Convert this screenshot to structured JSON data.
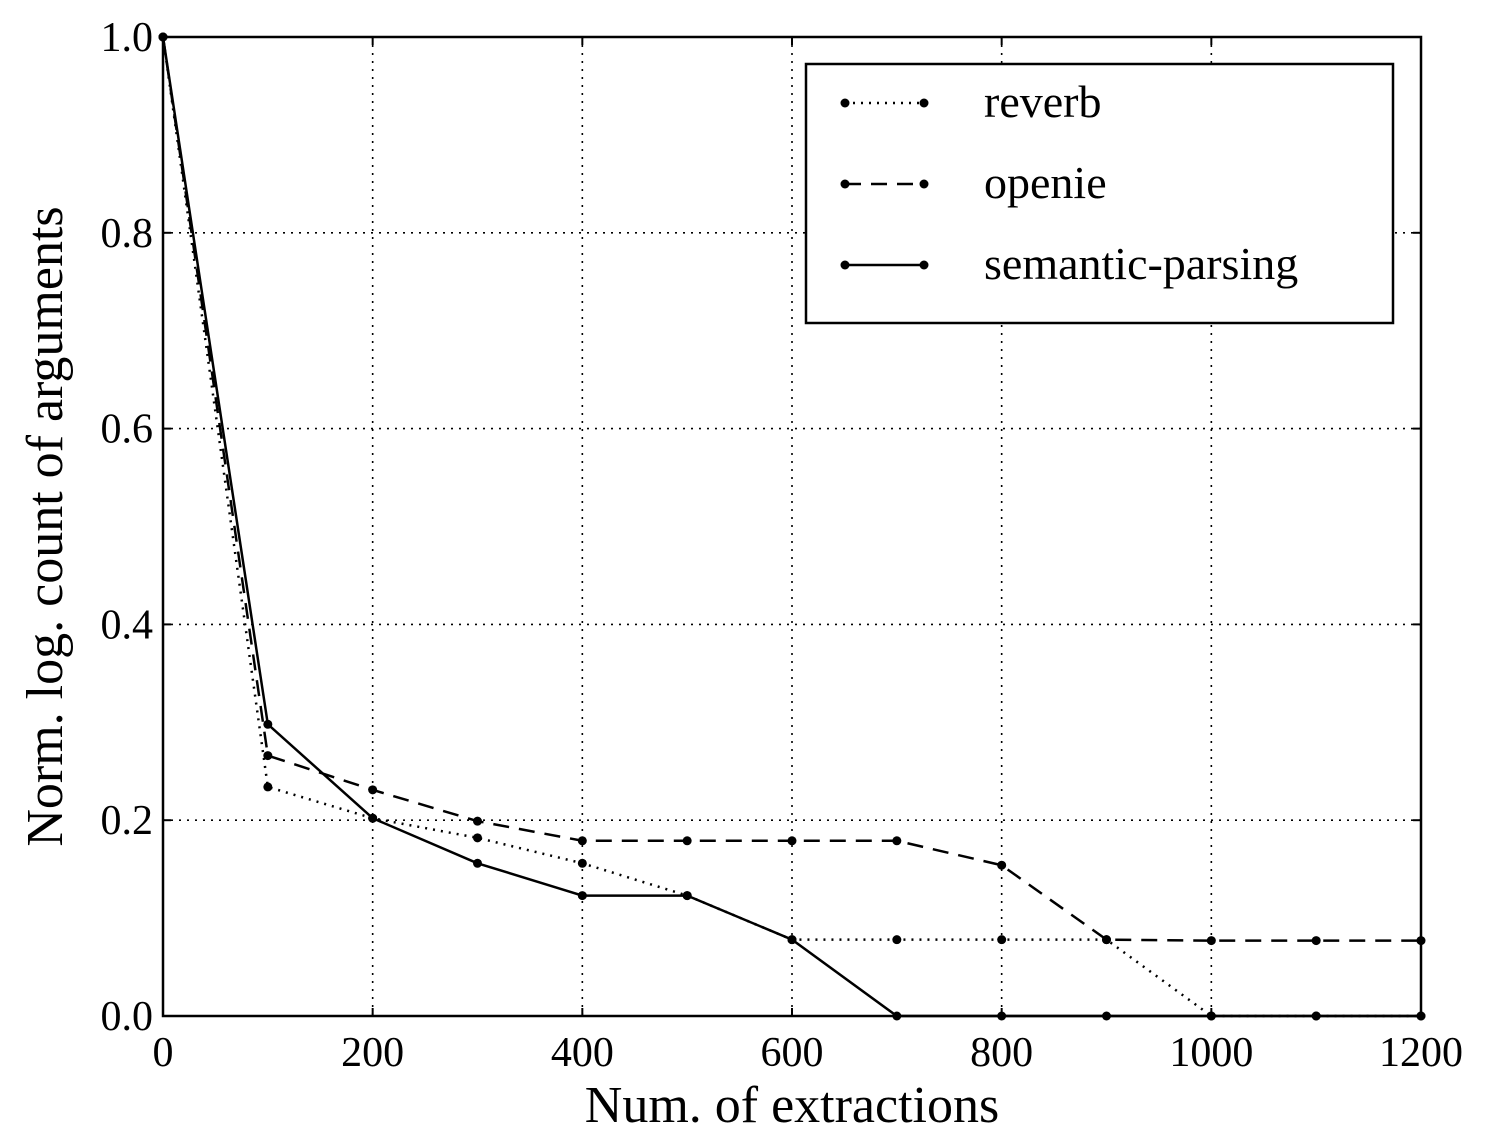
{
  "chart_data": {
    "type": "line",
    "title": "",
    "xlabel": "Num. of extractions",
    "ylabel": "Norm. log. count of arguments",
    "xlim": [
      0,
      1200
    ],
    "ylim": [
      0,
      1.0
    ],
    "xticks": [
      "0",
      "200",
      "400",
      "600",
      "800",
      "1000",
      "1200"
    ],
    "yticks": [
      "0.0",
      "0.2",
      "0.4",
      "0.6",
      "0.8",
      "1.0"
    ],
    "grid": true,
    "legend_position": "top-right",
    "x": [
      0,
      100,
      200,
      300,
      400,
      500,
      600,
      700,
      800,
      900,
      1000,
      1100,
      1200
    ],
    "series": [
      {
        "name": "reverb",
        "style": "dotted",
        "values": [
          1.0,
          0.234,
          0.202,
          0.182,
          0.156,
          0.123,
          0.078,
          0.078,
          0.078,
          0.078,
          0.0,
          0.0,
          0.0
        ]
      },
      {
        "name": "openie",
        "style": "dashed",
        "values": [
          1.0,
          0.266,
          0.231,
          0.199,
          0.179,
          0.179,
          0.179,
          0.179,
          0.154,
          0.078,
          0.077,
          0.077,
          0.077
        ]
      },
      {
        "name": "semantic-parsing",
        "style": "solid",
        "values": [
          1.0,
          0.298,
          0.202,
          0.156,
          0.123,
          0.123,
          0.078,
          0.0,
          0.0,
          0.0,
          0.0,
          0.0,
          0.0
        ]
      }
    ]
  }
}
